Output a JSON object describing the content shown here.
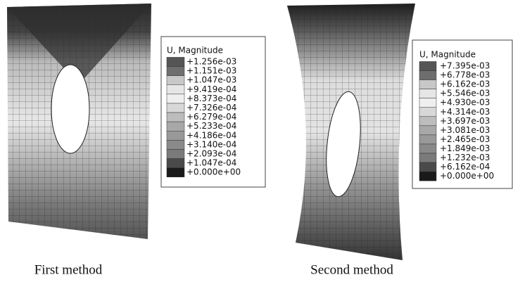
{
  "panels": [
    {
      "caption": "First method",
      "legend": {
        "title": "U, Magnitude",
        "labels": [
          "+1.256e-03",
          "+1.151e-03",
          "+1.047e-03",
          "+9.419e-04",
          "+8.373e-04",
          "+7.326e-04",
          "+6.279e-04",
          "+5.233e-04",
          "+4.186e-04",
          "+3.140e-04",
          "+2.093e-04",
          "+1.047e-04",
          "+0.000e+00"
        ],
        "colors": [
          "#555555",
          "#6e6e6e",
          "#c8c8c8",
          "#e6e6e6",
          "#efefef",
          "#d8d8d8",
          "#bdbdbd",
          "#a8a8a8",
          "#999999",
          "#8a8a8a",
          "#7a7a7a",
          "#4a4a4a",
          "#1a1a1a"
        ]
      }
    },
    {
      "caption": "Second method",
      "legend": {
        "title": "U, Magnitude",
        "labels": [
          "+7.395e-03",
          "+6.778e-03",
          "+6.162e-03",
          "+5.546e-03",
          "+4.930e-03",
          "+4.314e-03",
          "+3.697e-03",
          "+3.081e-03",
          "+2.465e-03",
          "+1.849e-03",
          "+1.232e-03",
          "+6.162e-04",
          "+0.000e+00"
        ],
        "colors": [
          "#555555",
          "#6e6e6e",
          "#c8c8c8",
          "#e6e6e6",
          "#efefef",
          "#d8d8d8",
          "#bdbdbd",
          "#a8a8a8",
          "#999999",
          "#8a8a8a",
          "#7a7a7a",
          "#4a4a4a",
          "#1a1a1a"
        ]
      }
    }
  ]
}
